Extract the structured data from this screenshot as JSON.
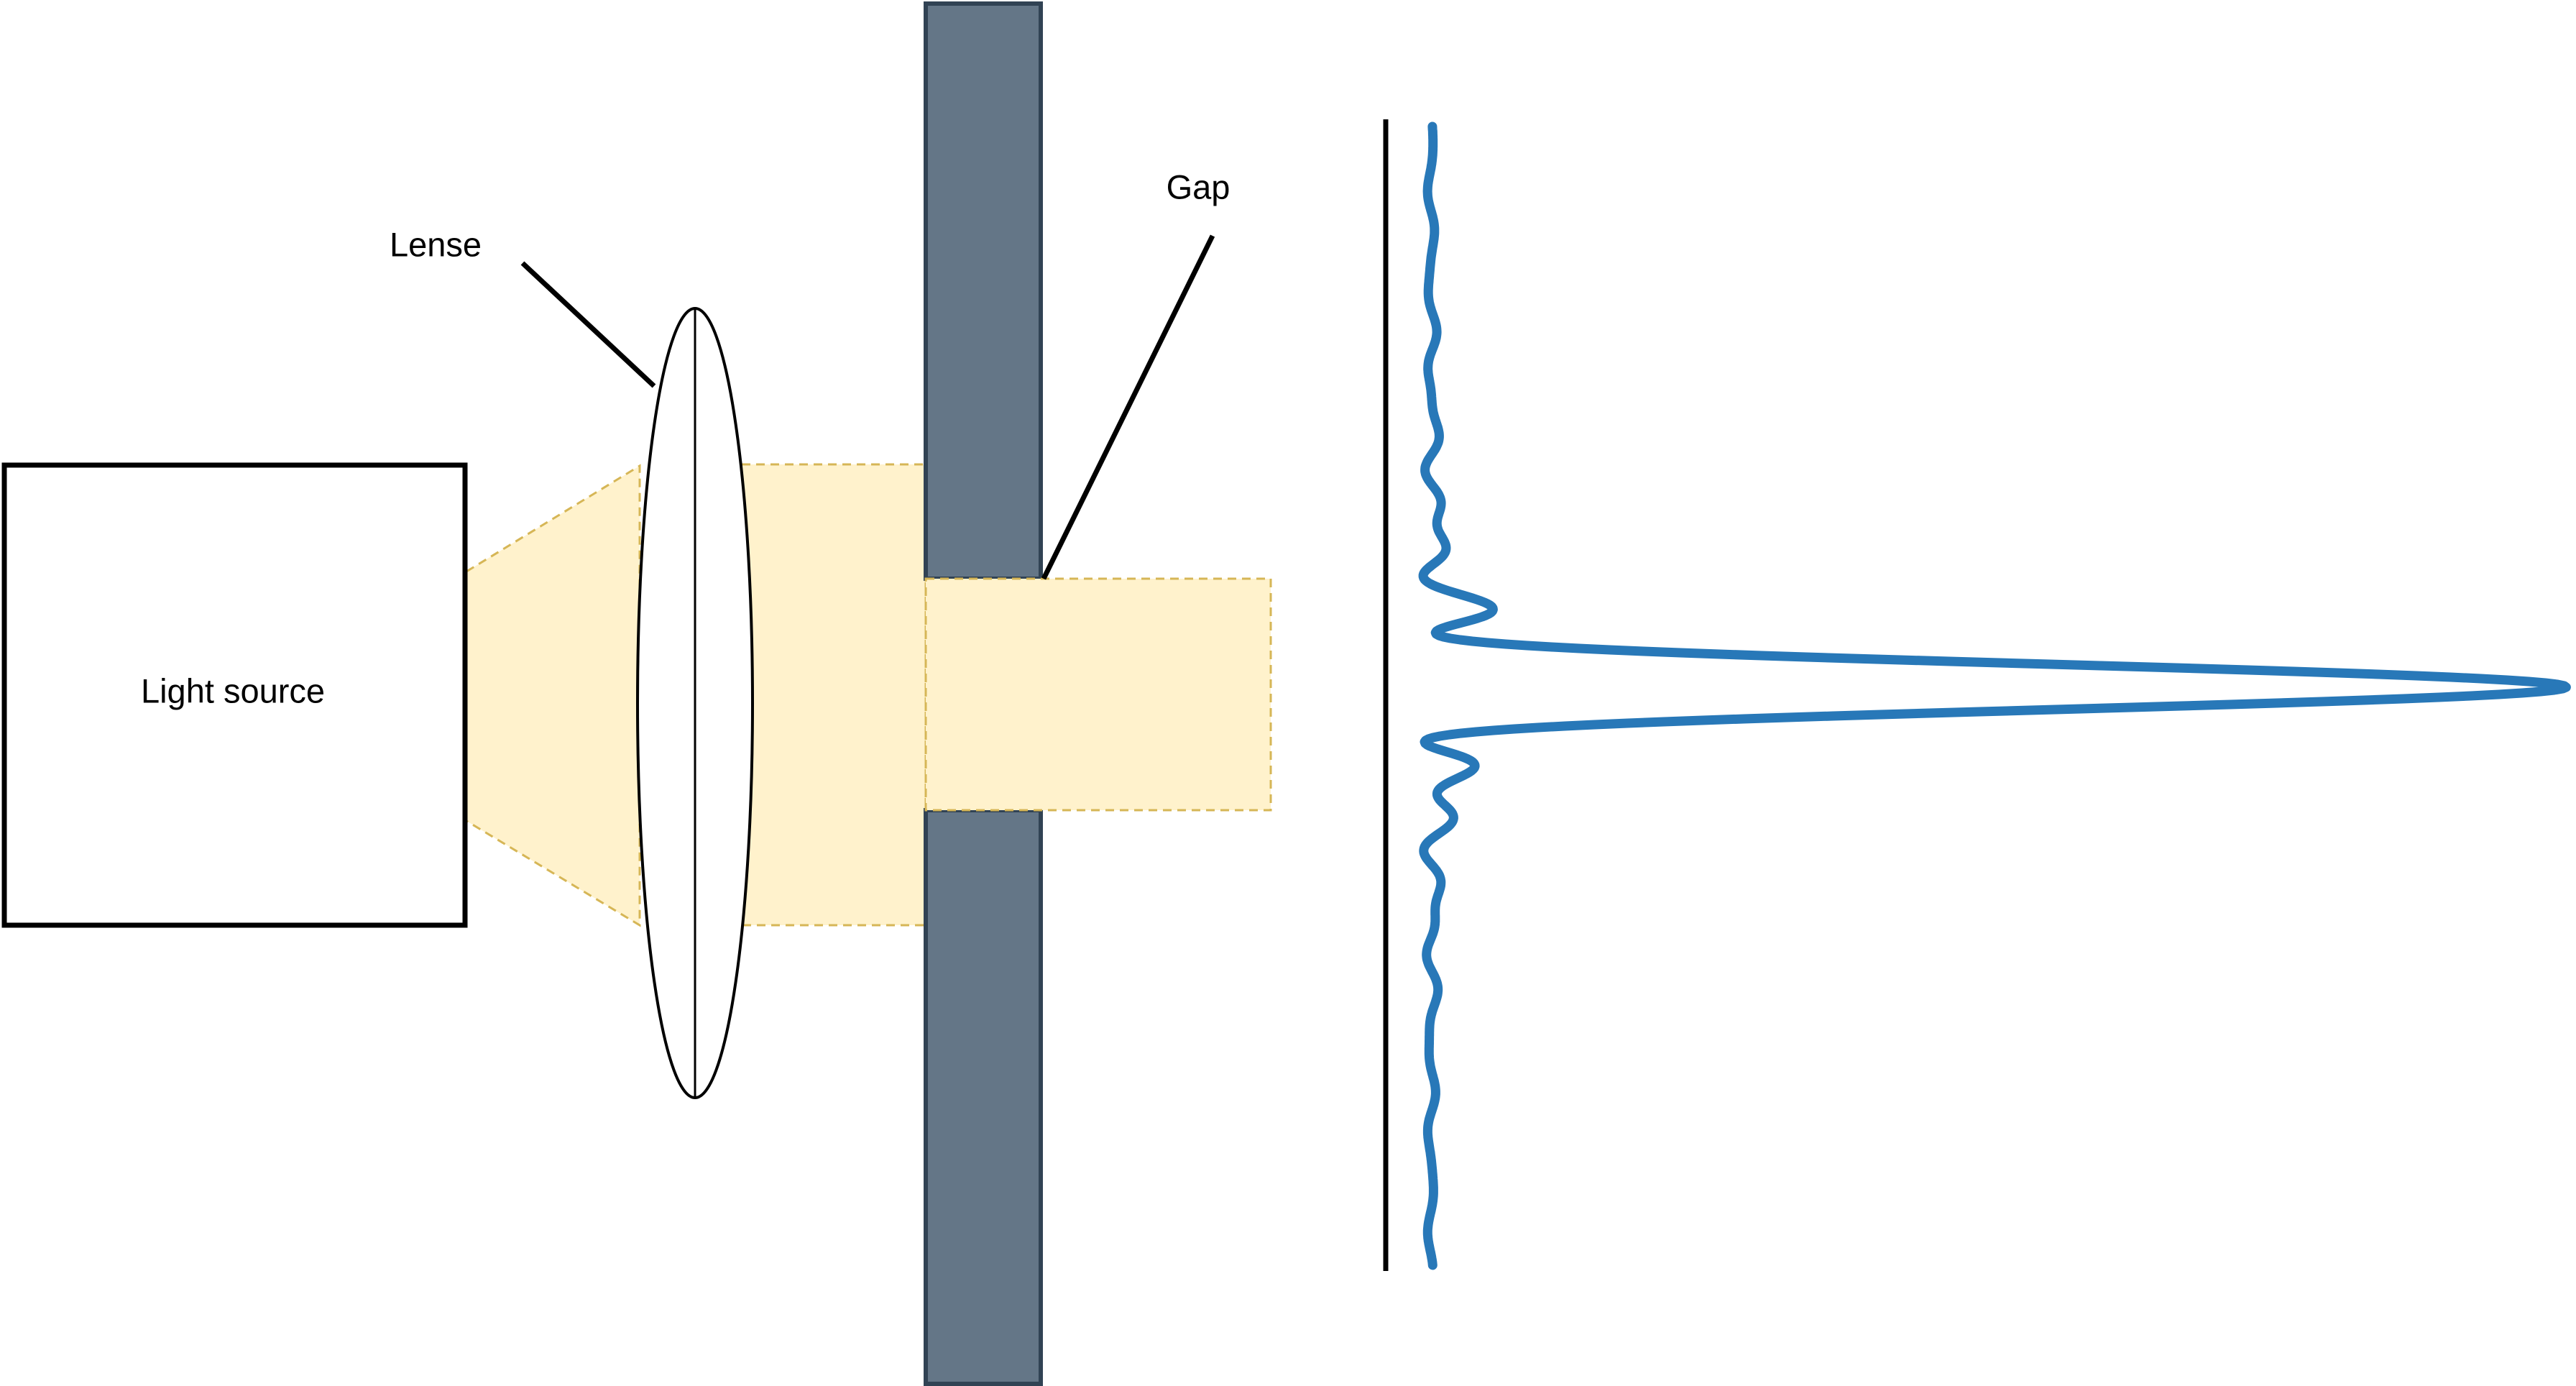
{
  "labels": {
    "light_source": "Light source",
    "lense": "Lense",
    "gap": "Gap"
  },
  "colors": {
    "beam_fill": "#fff2cc",
    "beam_stroke": "#d6b656",
    "wall_fill": "#647687",
    "wall_stroke": "#314354",
    "intensity_curve": "#2878b8",
    "outline": "#000000"
  }
}
